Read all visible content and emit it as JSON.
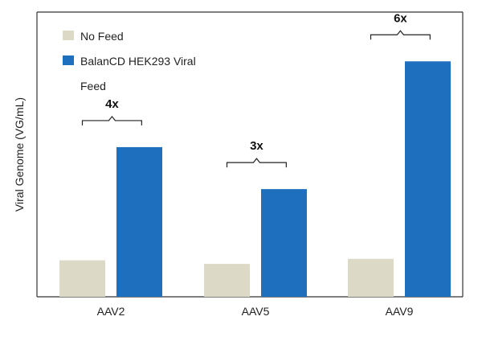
{
  "chart_data": {
    "type": "bar",
    "title": "",
    "xlabel": "",
    "ylabel": "Viral Genome (VG/mL)",
    "categories": [
      "AAV2",
      "AAV5",
      "AAV9"
    ],
    "series": [
      {
        "name": "No Feed",
        "color": "#dcd9c6",
        "values": [
          1.0,
          0.9,
          1.04
        ]
      },
      {
        "name": "BalanCD HEK293 Viral Feed",
        "color": "#1f6fbf",
        "values": [
          4.1,
          2.95,
          6.45
        ]
      }
    ],
    "ylim": [
      0,
      7.8
    ],
    "grid": false,
    "legend_position": "top-left",
    "legend_lines": {
      "series0": "No Feed",
      "series1_line1": "BalanCD HEK293 Viral",
      "series1_line2": "Feed"
    },
    "annotations": [
      {
        "category": "AAV2",
        "text": "4x"
      },
      {
        "category": "AAV5",
        "text": "3x"
      },
      {
        "category": "AAV9",
        "text": "6x"
      }
    ]
  }
}
